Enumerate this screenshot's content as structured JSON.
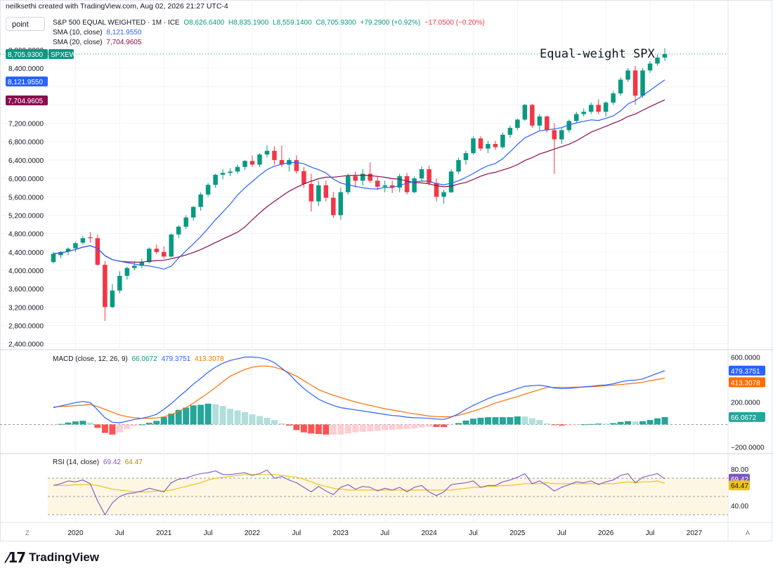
{
  "header": {
    "credit": "neilksethi created with TradingView.com, Aug 02, 2026 21:27 UTC-4",
    "interval_button": "point"
  },
  "price_legend": {
    "symbol_line": "S&P 500 EQUAL WEIGHTED · 1M · ICE",
    "open": "O8,626.6400",
    "high": "H8,835.1900",
    "low": "L8,559.1400",
    "close": "C8,705.9300",
    "change": "+79.2900 (+0.92%)",
    "extra": "−17.0500 (−0.20%)",
    "sma10_label": "SMA (10, close)",
    "sma10_value": "8,121.9550",
    "sma20_label": "SMA (20, close)",
    "sma20_value": "7,704.9605"
  },
  "annotation": "Equal-weight SPX",
  "price_axis": {
    "ticks": [
      "8,800.0000",
      "8,400.0000",
      "7,200.0000",
      "6,800.0000",
      "6,400.0000",
      "6,000.0000",
      "5,600.0000",
      "5,200.0000",
      "4,800.0000",
      "4,400.0000",
      "4,000.0000",
      "3,600.0000",
      "3,200.0000",
      "2,800.0000",
      "2,400.0000"
    ],
    "badges": {
      "last_price": "8,705.9300",
      "symbol": "SPXEW",
      "sma10": "8,121.9550",
      "sma20": "7,704.9605"
    }
  },
  "macd_legend": {
    "label": "MACD (close, 12, 26, 9)",
    "hist": "66.0672",
    "macd": "479.3751",
    "signal": "413.3078",
    "ticks": [
      "600.0000",
      "200.0000",
      "−200.0000"
    ]
  },
  "rsi_legend": {
    "label": "RSI (14, close)",
    "rsi": "69.42",
    "ma": "64.47",
    "ticks": [
      "80.00",
      "40.00"
    ]
  },
  "time_axis": [
    "2020",
    "Jul",
    "2021",
    "Jul",
    "2022",
    "Jul",
    "2023",
    "Jul",
    "2024",
    "Jul",
    "2025",
    "Jul",
    "2026",
    "Jul",
    "2027"
  ],
  "corners": {
    "left": "Z",
    "right": "A"
  },
  "footer": {
    "brand": "TradingView"
  },
  "colors": {
    "up": "#089981",
    "down": "#f23645",
    "sma10": "#2962ff",
    "sma20": "#880e4f",
    "macd": "#2962ff",
    "signal": "#ff6d00",
    "rsi": "#7e57c2",
    "rsi_ma": "#f0c419"
  },
  "chart_data": [
    {
      "type": "candlestick",
      "title": "S&P 500 EQUAL WEIGHTED · 1M · ICE",
      "ylim": [
        2400,
        9000
      ],
      "start": "2019-10",
      "candles": [
        [
          4180,
          4400,
          4150,
          4360
        ],
        [
          4330,
          4420,
          4260,
          4400
        ],
        [
          4410,
          4500,
          4330,
          4470
        ],
        [
          4480,
          4620,
          4400,
          4590
        ],
        [
          4600,
          4750,
          4560,
          4700
        ],
        [
          4720,
          4830,
          4600,
          4700
        ],
        [
          4700,
          4780,
          4100,
          4120
        ],
        [
          4120,
          4200,
          2900,
          3200
        ],
        [
          3200,
          3700,
          3180,
          3560
        ],
        [
          3560,
          3980,
          3500,
          3880
        ],
        [
          3880,
          4080,
          3800,
          4050
        ],
        [
          4050,
          4200,
          4000,
          4100
        ],
        [
          4100,
          4250,
          4050,
          4180
        ],
        [
          4180,
          4500,
          4150,
          4470
        ],
        [
          4470,
          4560,
          4350,
          4400
        ],
        [
          4400,
          4520,
          4250,
          4300
        ],
        [
          4300,
          4800,
          4280,
          4780
        ],
        [
          4780,
          4980,
          4700,
          4950
        ],
        [
          4950,
          5200,
          4900,
          5150
        ],
        [
          5150,
          5400,
          5080,
          5380
        ],
        [
          5380,
          5700,
          5300,
          5650
        ],
        [
          5650,
          5900,
          5600,
          5860
        ],
        [
          5860,
          6100,
          5800,
          6080
        ],
        [
          6080,
          6200,
          5980,
          6120
        ],
        [
          6120,
          6220,
          6050,
          6150
        ],
        [
          6150,
          6300,
          6100,
          6250
        ],
        [
          6250,
          6400,
          6180,
          6380
        ],
        [
          6380,
          6500,
          6250,
          6300
        ],
        [
          6300,
          6550,
          6250,
          6520
        ],
        [
          6520,
          6720,
          6460,
          6600
        ],
        [
          6600,
          6700,
          6300,
          6400
        ],
        [
          6400,
          6720,
          6250,
          6300
        ],
        [
          6300,
          6450,
          6150,
          6400
        ],
        [
          6400,
          6500,
          6100,
          6160
        ],
        [
          6160,
          6250,
          5800,
          5880
        ],
        [
          5880,
          6100,
          5280,
          5500
        ],
        [
          5500,
          5950,
          5400,
          5850
        ],
        [
          5850,
          5950,
          5500,
          5580
        ],
        [
          5580,
          5700,
          5140,
          5200
        ],
        [
          5200,
          5800,
          5100,
          5700
        ],
        [
          5700,
          6100,
          5650,
          6050
        ],
        [
          6050,
          6150,
          5800,
          5950
        ],
        [
          5950,
          6200,
          5850,
          6100
        ],
        [
          6100,
          6350,
          5900,
          5950
        ],
        [
          5950,
          6050,
          5750,
          5820
        ],
        [
          5820,
          5950,
          5700,
          5850
        ],
        [
          5850,
          5950,
          5680,
          5800
        ],
        [
          5800,
          6100,
          5700,
          6050
        ],
        [
          6050,
          6120,
          5650,
          5700
        ],
        [
          5700,
          6050,
          5680,
          6000
        ],
        [
          6000,
          6260,
          5950,
          6200
        ],
        [
          6200,
          6280,
          5850,
          5900
        ],
        [
          5900,
          6000,
          5500,
          5600
        ],
        [
          5600,
          5750,
          5450,
          5700
        ],
        [
          5700,
          6200,
          5680,
          6150
        ],
        [
          6150,
          6450,
          6100,
          6400
        ],
        [
          6400,
          6600,
          6300,
          6550
        ],
        [
          6550,
          6920,
          6520,
          6870
        ],
        [
          6870,
          6920,
          6600,
          6650
        ],
        [
          6650,
          6820,
          6550,
          6750
        ],
        [
          6750,
          6820,
          6620,
          6680
        ],
        [
          6680,
          7000,
          6650,
          6950
        ],
        [
          6950,
          7150,
          6880,
          7100
        ],
        [
          7100,
          7300,
          7050,
          7280
        ],
        [
          7280,
          7620,
          7250,
          7600
        ],
        [
          7600,
          7620,
          7100,
          7150
        ],
        [
          7150,
          7400,
          7050,
          7350
        ],
        [
          7350,
          7360,
          7000,
          7050
        ],
        [
          7050,
          7200,
          6100,
          6850
        ],
        [
          6850,
          7100,
          6750,
          7050
        ],
        [
          7050,
          7280,
          7000,
          7250
        ],
        [
          7250,
          7450,
          7200,
          7400
        ],
        [
          7400,
          7520,
          7350,
          7450
        ],
        [
          7450,
          7650,
          7400,
          7600
        ],
        [
          7600,
          7720,
          7400,
          7450
        ],
        [
          7450,
          7680,
          7350,
          7650
        ],
        [
          7650,
          7900,
          7600,
          7850
        ],
        [
          7850,
          8200,
          7800,
          8150
        ],
        [
          8150,
          8400,
          8100,
          8350
        ],
        [
          8350,
          8450,
          7600,
          7800
        ],
        [
          7800,
          8400,
          7750,
          8350
        ],
        [
          8350,
          8550,
          8300,
          8500
        ],
        [
          8500,
          8700,
          8450,
          8630
        ],
        [
          8630,
          8835,
          8559,
          8706
        ]
      ],
      "sma10_end": 8121.955,
      "sma20_end": 7704.9605
    },
    {
      "type": "line",
      "title": "MACD (close, 12, 26, 9)",
      "ylim": [
        -250,
        650
      ],
      "series": [
        {
          "name": "MACD",
          "values": [
            150,
            165,
            180,
            195,
            205,
            195,
            130,
            60,
            20,
            15,
            30,
            45,
            55,
            70,
            90,
            135,
            185,
            245,
            300,
            360,
            410,
            465,
            510,
            545,
            570,
            585,
            600,
            600,
            595,
            580,
            550,
            500,
            450,
            380,
            320,
            270,
            225,
            195,
            170,
            150,
            140,
            130,
            120,
            110,
            100,
            90,
            80,
            75,
            65,
            60,
            58,
            55,
            48,
            45,
            65,
            95,
            135,
            170,
            200,
            230,
            255,
            275,
            295,
            320,
            340,
            345,
            350,
            340,
            325,
            320,
            322,
            328,
            335,
            340,
            348,
            352,
            362,
            378,
            392,
            395,
            405,
            430,
            455,
            479
          ]
        },
        {
          "name": "Signal",
          "values": [
            155,
            160,
            163,
            168,
            172,
            178,
            160,
            135,
            110,
            85,
            70,
            60,
            55,
            55,
            58,
            68,
            88,
            115,
            150,
            190,
            235,
            280,
            330,
            380,
            430,
            460,
            490,
            510,
            520,
            520,
            510,
            490,
            460,
            430,
            390,
            350,
            310,
            285,
            260,
            240,
            220,
            200,
            185,
            170,
            155,
            140,
            128,
            118,
            105,
            95,
            85,
            75,
            70,
            68,
            70,
            82,
            100,
            118,
            140,
            165,
            190,
            210,
            230,
            248,
            270,
            290,
            310,
            330,
            330,
            330,
            330,
            332,
            334,
            336,
            340,
            345,
            350,
            355,
            362,
            368,
            376,
            390,
            400,
            413
          ]
        },
        {
          "name": "Histogram",
          "values": [
            -5,
            5,
            17,
            27,
            33,
            17,
            -30,
            -75,
            -90,
            -70,
            -40,
            -15,
            0,
            15,
            32,
            67,
            97,
            130,
            150,
            170,
            175,
            185,
            180,
            165,
            140,
            125,
            110,
            90,
            75,
            60,
            40,
            10,
            -10,
            -50,
            -70,
            -80,
            -85,
            -90,
            -90,
            -90,
            -80,
            -70,
            -65,
            -60,
            -55,
            -50,
            -48,
            -43,
            -40,
            -35,
            -27,
            -20,
            -22,
            -23,
            -5,
            13,
            35,
            52,
            60,
            65,
            65,
            65,
            65,
            72,
            70,
            55,
            40,
            10,
            -5,
            -10,
            -8,
            -4,
            1,
            4,
            8,
            7,
            12,
            23,
            30,
            27,
            29,
            40,
            55,
            66
          ]
        }
      ]
    },
    {
      "type": "line",
      "title": "RSI (14, close)",
      "ylim": [
        25,
        85
      ],
      "series": [
        {
          "name": "RSI",
          "values": [
            62,
            64,
            67,
            66,
            68,
            64,
            45,
            30,
            43,
            50,
            53,
            54,
            56,
            59,
            57,
            55,
            65,
            69,
            70,
            73,
            75,
            76,
            78,
            74,
            74,
            75,
            76,
            73,
            75,
            79,
            70,
            72,
            68,
            65,
            60,
            55,
            61,
            56,
            52,
            60,
            63,
            58,
            61,
            60,
            56,
            59,
            57,
            60,
            55,
            60,
            62,
            55,
            51,
            55,
            63,
            64,
            65,
            67,
            60,
            62,
            62,
            66,
            68,
            71,
            75,
            64,
            67,
            62,
            56,
            60,
            63,
            66,
            65,
            67,
            63,
            66,
            68,
            73,
            75,
            65,
            71,
            73,
            75,
            69.42
          ]
        },
        {
          "name": "RSI MA",
          "values": [
            62,
            62,
            62,
            63,
            63,
            63,
            62,
            60,
            58,
            57,
            56,
            55,
            55,
            55,
            56,
            56,
            57,
            59,
            61,
            63,
            65,
            68,
            70,
            71,
            72,
            73,
            74,
            74,
            74,
            74,
            74,
            73,
            72,
            71,
            69,
            66,
            63,
            61,
            59,
            58,
            57,
            57,
            57,
            57,
            57,
            57,
            57,
            57,
            57,
            57,
            57,
            57,
            57,
            57,
            57,
            58,
            59,
            60,
            60,
            61,
            61,
            62,
            62,
            63,
            64,
            64,
            64,
            65,
            64,
            64,
            64,
            64,
            64,
            64,
            64,
            64,
            64,
            65,
            66,
            65,
            66,
            66,
            67,
            64.47
          ]
        }
      ]
    }
  ]
}
